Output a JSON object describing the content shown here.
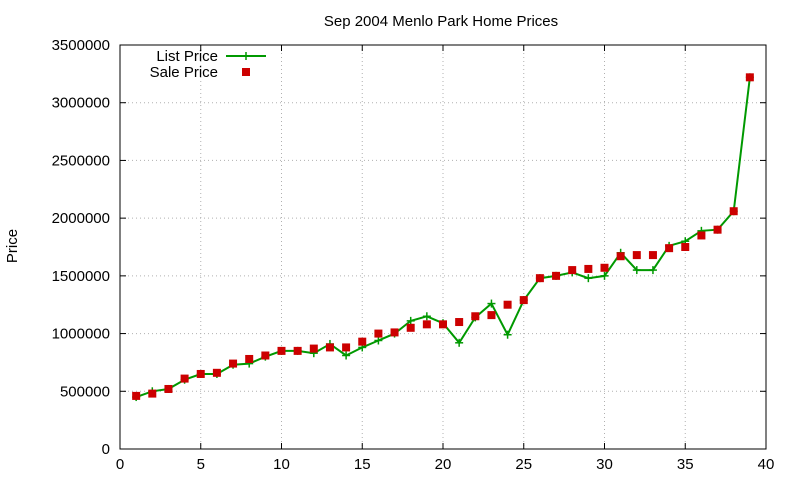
{
  "chart_data": {
    "type": "line",
    "title": "Sep 2004 Menlo Park Home Prices",
    "xlabel": "",
    "ylabel": "Price",
    "xlim": [
      0,
      40
    ],
    "ylim": [
      0,
      3500000
    ],
    "xticks": [
      "0",
      "5",
      "10",
      "15",
      "20",
      "25",
      "30",
      "35",
      "40"
    ],
    "yticks": [
      "0",
      "500000",
      "1000000",
      "1500000",
      "2000000",
      "2500000",
      "3000000",
      "3500000"
    ],
    "grid": true,
    "legend_position": "top-left",
    "x": [
      1,
      2,
      3,
      4,
      5,
      6,
      7,
      8,
      9,
      10,
      11,
      12,
      13,
      14,
      15,
      16,
      17,
      18,
      19,
      20,
      21,
      22,
      23,
      24,
      25,
      26,
      27,
      28,
      29,
      30,
      31,
      32,
      33,
      34,
      35,
      36,
      37,
      38,
      39
    ],
    "series": [
      {
        "name": "List Price",
        "style": "line-plus",
        "color": "#009900",
        "values": [
          450000,
          500000,
          520000,
          600000,
          650000,
          650000,
          730000,
          740000,
          800000,
          850000,
          850000,
          830000,
          910000,
          810000,
          880000,
          940000,
          1000000,
          1110000,
          1150000,
          1090000,
          920000,
          1140000,
          1260000,
          990000,
          1290000,
          1480000,
          1500000,
          1530000,
          1480000,
          1500000,
          1700000,
          1550000,
          1550000,
          1760000,
          1800000,
          1890000,
          1900000,
          2060000,
          3220000
        ]
      },
      {
        "name": "Sale Price",
        "style": "points-square",
        "color": "#cc0000",
        "values": [
          460000,
          480000,
          520000,
          610000,
          650000,
          660000,
          740000,
          780000,
          810000,
          850000,
          850000,
          870000,
          880000,
          880000,
          930000,
          1000000,
          1010000,
          1050000,
          1080000,
          1080000,
          1100000,
          1150000,
          1160000,
          1250000,
          1290000,
          1480000,
          1500000,
          1550000,
          1560000,
          1570000,
          1670000,
          1680000,
          1680000,
          1740000,
          1750000,
          1850000,
          1900000,
          2060000,
          3220000
        ]
      }
    ]
  }
}
